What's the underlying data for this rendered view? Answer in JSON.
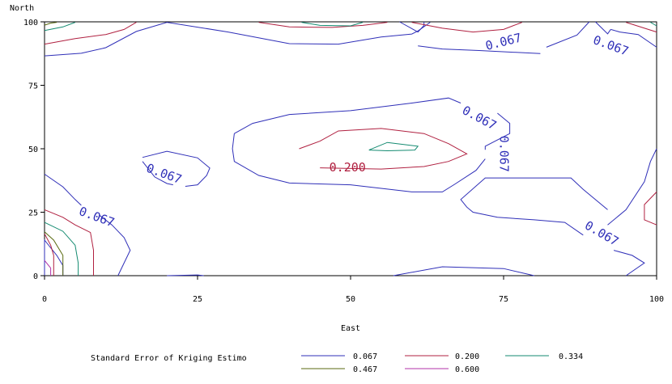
{
  "chart_data": {
    "type": "contour",
    "xlabel": "East",
    "ylabel": "North",
    "xlim": [
      0,
      100
    ],
    "ylim": [
      0,
      100
    ],
    "xticks": [
      "0",
      "25",
      "50",
      "75",
      "100"
    ],
    "yticks": [
      "0",
      "25",
      "50",
      "75",
      "100"
    ],
    "legend": {
      "title": "Standard Error of Kriging Estimo",
      "placement": "bottom"
    },
    "colors": {
      "0.067": "#2f2fb8",
      "0.200": "#b02040",
      "0.334": "#138a70",
      "0.467": "#5a6a10",
      "0.600": "#b030a8"
    },
    "levels": [
      {
        "name": "0.067",
        "paths": [
          [
            [
              0,
              86.6
            ],
            [
              6,
              87.6
            ],
            [
              10,
              89.8
            ],
            [
              15,
              96.2
            ],
            [
              20,
              99.8
            ],
            [
              30,
              96
            ],
            [
              40,
              91.4
            ],
            [
              48,
              91.2
            ],
            [
              55,
              94
            ],
            [
              60,
              95.2
            ],
            [
              61,
              96.4
            ],
            [
              63,
              99.8
            ]
          ],
          [
            [
              58,
              100
            ],
            [
              61,
              96
            ],
            [
              62,
              98.6
            ],
            [
              62,
              100
            ]
          ],
          [
            [
              61,
              90.5
            ],
            [
              65,
              89.3
            ],
            [
              71,
              88.7
            ],
            [
              81,
              87.5
            ]
          ],
          [
            [
              82,
              90
            ],
            [
              87,
              94.8
            ],
            [
              89,
              100
            ]
          ],
          [
            [
              90,
              100
            ],
            [
              92,
              95.3
            ],
            [
              92.5,
              97
            ]
          ],
          [
            [
              92.5,
              97
            ],
            [
              94,
              96
            ],
            [
              97,
              95
            ],
            [
              100,
              90
            ]
          ],
          [
            [
              16,
              46.6
            ],
            [
              20,
              49
            ],
            [
              25,
              46.4
            ],
            [
              27,
              42.4
            ],
            [
              26.5,
              39.5
            ],
            [
              25,
              35.8
            ],
            [
              23,
              35.2
            ]
          ],
          [
            [
              21,
              35.8
            ],
            [
              20,
              36.3
            ],
            [
              18,
              38.9
            ],
            [
              16,
              45
            ]
          ],
          [
            [
              31,
              56
            ],
            [
              34,
              60
            ],
            [
              40,
              63.5
            ],
            [
              50,
              65
            ],
            [
              60,
              68
            ],
            [
              66,
              70
            ],
            [
              68,
              68
            ]
          ],
          [
            [
              74,
              64
            ],
            [
              76,
              60
            ],
            [
              76,
              56
            ],
            [
              72,
              51
            ],
            [
              72,
              49.6
            ]
          ],
          [
            [
              72,
              46
            ],
            [
              70.5,
              41.5
            ],
            [
              67,
              36
            ],
            [
              65,
              33
            ],
            [
              60,
              33
            ],
            [
              50,
              35.8
            ],
            [
              40,
              36.5
            ],
            [
              35,
              39.5
            ],
            [
              31,
              45
            ],
            [
              30.7,
              50
            ],
            [
              31,
              56
            ]
          ],
          [
            [
              0,
              40
            ],
            [
              3,
              35
            ],
            [
              5,
              30
            ],
            [
              6,
              27.7
            ]
          ],
          [
            [
              9,
              23.8
            ],
            [
              11,
              20
            ],
            [
              13,
              15
            ],
            [
              14,
              10
            ],
            [
              12,
              0
            ]
          ],
          [
            [
              57,
              0
            ],
            [
              65,
              3.5
            ],
            [
              75,
              2.8
            ],
            [
              80,
              0
            ]
          ],
          [
            [
              95,
              0
            ],
            [
              98,
              5
            ],
            [
              96,
              8
            ],
            [
              93,
              10
            ]
          ],
          [
            [
              88,
              16
            ],
            [
              85,
              21
            ],
            [
              80,
              22
            ],
            [
              74,
              23
            ],
            [
              70,
              25
            ],
            [
              69,
              27
            ],
            [
              68,
              30
            ],
            [
              72,
              38.5
            ],
            [
              80,
              38.5
            ],
            [
              86,
              38.5
            ],
            [
              88,
              34
            ],
            [
              92,
              26
            ]
          ],
          [
            [
              92,
              20
            ],
            [
              95,
              26
            ],
            [
              98,
              37
            ],
            [
              99,
              45
            ],
            [
              100,
              50
            ]
          ],
          [
            [
              0,
              0
            ],
            [
              0,
              14
            ],
            [
              1,
              11
            ],
            [
              2,
              8
            ],
            [
              3,
              4
            ],
            [
              3,
              0
            ]
          ],
          [
            [
              20,
              0
            ],
            [
              25,
              0.3
            ],
            [
              26,
              0
            ]
          ]
        ]
      },
      {
        "name": "0.200",
        "paths": [
          [
            [
              0,
              91.2
            ],
            [
              5,
              93.4
            ],
            [
              10,
              95
            ],
            [
              13,
              97
            ],
            [
              15,
              99.8
            ]
          ],
          [
            [
              35,
              99.8
            ],
            [
              40,
              98
            ],
            [
              47,
              97.8
            ],
            [
              52,
              98.6
            ],
            [
              56,
              99.8
            ]
          ],
          [
            [
              60,
              99.8
            ],
            [
              65,
              97.5
            ],
            [
              70,
              96
            ],
            [
              75,
              97
            ],
            [
              78,
              99.8
            ]
          ],
          [
            [
              95,
              99.8
            ],
            [
              100,
              96
            ]
          ],
          [
            [
              100,
              33
            ],
            [
              98,
              28
            ],
            [
              98,
              22
            ],
            [
              100,
              20
            ]
          ],
          [
            [
              41.6,
              50
            ],
            [
              45,
              53
            ],
            [
              48,
              57
            ],
            [
              55,
              58
            ],
            [
              62,
              56
            ],
            [
              66,
              52
            ],
            [
              69,
              48
            ],
            [
              66,
              45
            ],
            [
              62,
              43
            ],
            [
              55,
              42
            ],
            [
              45,
              42.5
            ]
          ],
          [
            [
              0,
              26
            ],
            [
              3,
              23
            ],
            [
              5,
              20
            ],
            [
              7.5,
              17
            ],
            [
              8,
              10
            ],
            [
              8,
              0
            ]
          ],
          [
            [
              0,
              16.5
            ],
            [
              1,
              12
            ],
            [
              1.5,
              8
            ],
            [
              1.5,
              0
            ]
          ]
        ]
      },
      {
        "name": "0.334",
        "paths": [
          [
            [
              0,
              96.6
            ],
            [
              3,
              98
            ],
            [
              5,
              99.8
            ]
          ],
          [
            [
              42,
              99.8
            ],
            [
              45,
              98.6
            ],
            [
              50,
              98.4
            ],
            [
              52,
              99.8
            ]
          ],
          [
            [
              99,
              99.8
            ],
            [
              100,
              98.4
            ]
          ],
          [
            [
              53,
              49.5
            ],
            [
              56,
              52.5
            ],
            [
              61,
              51
            ],
            [
              60.5,
              49.5
            ],
            [
              56,
              49.2
            ],
            [
              53,
              49.5
            ]
          ],
          [
            [
              0,
              21
            ],
            [
              3,
              17.5
            ],
            [
              5,
              12
            ],
            [
              5.5,
              5
            ],
            [
              5.5,
              0
            ]
          ]
        ]
      },
      {
        "name": "0.467",
        "paths": [
          [
            [
              0,
              98.7
            ],
            [
              1,
              99.5
            ],
            [
              2,
              99.8
            ]
          ],
          [
            [
              0,
              17.3
            ],
            [
              1.5,
              14
            ],
            [
              3,
              8
            ],
            [
              3,
              0
            ]
          ]
        ]
      },
      {
        "name": "0.600",
        "paths": [
          [
            [
              0,
              6
            ],
            [
              1,
              3
            ],
            [
              1,
              0
            ]
          ]
        ]
      }
    ],
    "contour_labels": [
      {
        "text": "0.067",
        "x": 75,
        "y": 92,
        "angle": -14,
        "level": "0.067"
      },
      {
        "text": "0.067",
        "x": 92.5,
        "y": 90.5,
        "angle": 20,
        "level": "0.067"
      },
      {
        "text": "0.067",
        "x": 71,
        "y": 62,
        "angle": 28,
        "level": "0.067"
      },
      {
        "text": "0.067",
        "x": 75,
        "y": 48,
        "angle": 90,
        "level": "0.067"
      },
      {
        "text": "0.067",
        "x": 19.5,
        "y": 40,
        "angle": 20,
        "level": "0.067"
      },
      {
        "text": "0.200",
        "x": 49.5,
        "y": 42.5,
        "angle": 0,
        "level": "0.200"
      },
      {
        "text": "0.067",
        "x": 8.5,
        "y": 23,
        "angle": 20,
        "level": "0.067"
      },
      {
        "text": "0.067",
        "x": 91,
        "y": 16.5,
        "angle": 30,
        "level": "0.067"
      }
    ],
    "legend_entries": [
      {
        "label": "0.067",
        "level": "0.067"
      },
      {
        "label": "0.200",
        "level": "0.200"
      },
      {
        "label": "0.334",
        "level": "0.334"
      },
      {
        "label": "0.467",
        "level": "0.467"
      },
      {
        "label": "0.600",
        "level": "0.600"
      }
    ]
  }
}
